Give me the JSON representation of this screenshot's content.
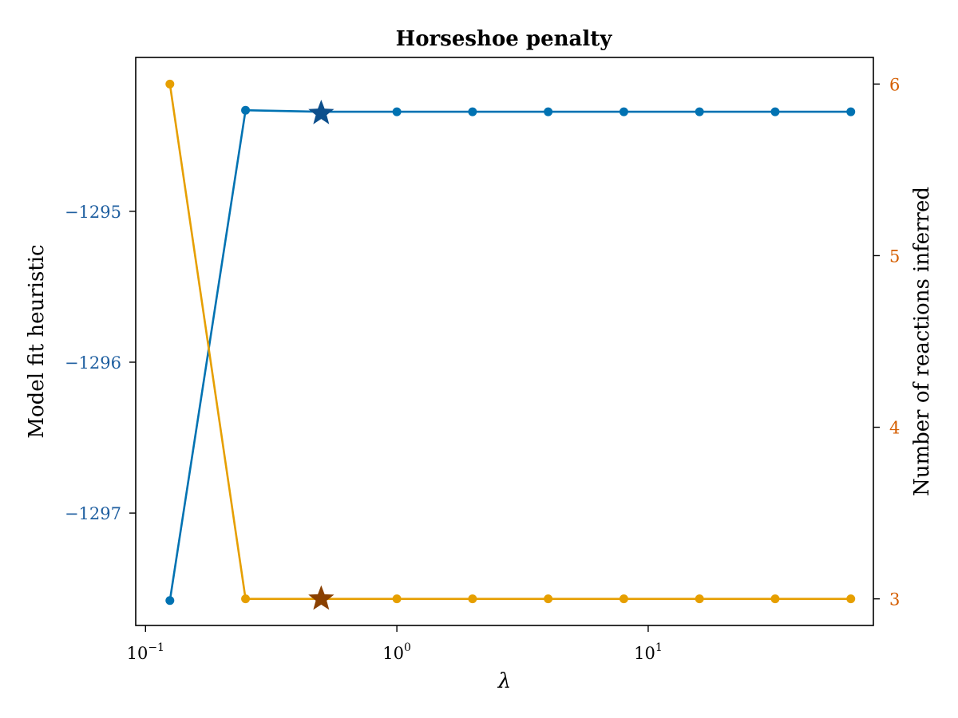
{
  "chart_data": {
    "type": "line",
    "title": "Horseshoe penalty",
    "xlabel": "λ",
    "xscale": "log",
    "x_tick_labels": [
      {
        "base": "10",
        "exp": "−1",
        "value": 0.1
      },
      {
        "base": "10",
        "exp": "0",
        "value": 1
      },
      {
        "base": "10",
        "exp": "1",
        "value": 10
      }
    ],
    "x": [
      0.125,
      0.25,
      0.5,
      1,
      2,
      4,
      8,
      16,
      32,
      64
    ],
    "xlim": [
      0.0914,
      78.7
    ],
    "series": [
      {
        "axis": "left",
        "color": "#0072b2",
        "values": [
          -1297.58,
          -1294.33,
          -1294.34,
          -1294.34,
          -1294.34,
          -1294.34,
          -1294.34,
          -1294.34,
          -1294.34,
          -1294.34
        ],
        "best": {
          "x": 0.5,
          "y": -1294.35,
          "color": "#0d4f8c"
        }
      },
      {
        "axis": "right",
        "color": "#e69f00",
        "values": [
          6,
          3,
          3,
          3,
          3,
          3,
          3,
          3,
          3,
          3
        ],
        "best": {
          "x": 0.5,
          "y": 3,
          "color": "#8a4000"
        }
      }
    ],
    "y_left": {
      "label": "Model fit heuristic",
      "ticks": [
        -1295,
        -1296,
        -1297
      ],
      "tick_labels": [
        "−1295",
        "−1296",
        "−1297"
      ],
      "color": "#1f5fa0",
      "ylim": [
        -1297.745,
        -1293.98
      ]
    },
    "y_right": {
      "label": "Number of reactions inferred",
      "ticks": [
        3,
        4,
        5,
        6
      ],
      "tick_labels": [
        "3",
        "4",
        "5",
        "6"
      ],
      "color": "#d55e00",
      "ylim": [
        2.845,
        6.155
      ]
    },
    "grid": false
  }
}
